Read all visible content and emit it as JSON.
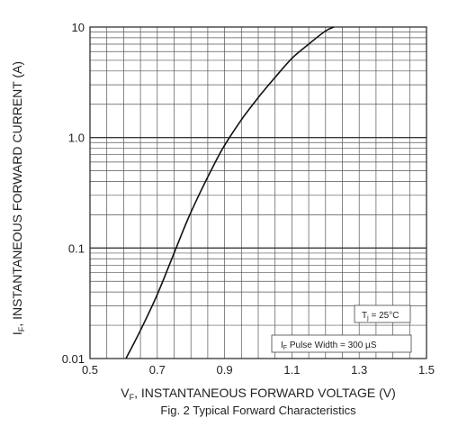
{
  "chart_data": {
    "type": "line",
    "title": "",
    "caption": "Fig. 2 Typical Forward Characteristics",
    "xlabel": {
      "main": "V",
      "sub": "F",
      "rest": ", INSTANTANEOUS FORWARD VOLTAGE (V)"
    },
    "ylabel": {
      "main": "I",
      "sub": "F",
      "rest": ", INSTANTANEOUS FORWARD CURRENT (A)"
    },
    "xlim": [
      0.5,
      1.5
    ],
    "ylim": [
      0.01,
      10
    ],
    "yscale": "log",
    "grid": true,
    "x_ticks": [
      "0.5",
      "0.7",
      "0.9",
      "1.1",
      "1.3",
      "1.5"
    ],
    "y_ticks": [
      "0.01",
      "0.1",
      "1.0",
      "10"
    ],
    "annotations": [
      {
        "main": "T",
        "sub": "j",
        "rest": " = 25°C"
      },
      {
        "main": "I",
        "sub": "F",
        "rest": " Pulse Width = 300 µS"
      }
    ],
    "series": [
      {
        "x": [
          0.607,
          0.65,
          0.7,
          0.75,
          0.79,
          0.83,
          0.87,
          0.9,
          0.95,
          1.0,
          1.05,
          1.1,
          1.15,
          1.2,
          1.225
        ],
        "y": [
          0.01,
          0.018,
          0.038,
          0.09,
          0.18,
          0.33,
          0.58,
          0.85,
          1.45,
          2.3,
          3.5,
          5.2,
          7.0,
          9.2,
          10
        ]
      }
    ]
  }
}
